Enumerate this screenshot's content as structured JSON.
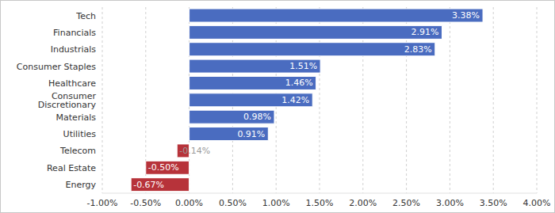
{
  "chart_data": {
    "type": "bar",
    "orientation": "horizontal",
    "categories": [
      "Tech",
      "Financials",
      "Industrials",
      "Consumer Staples",
      "Healthcare",
      "Consumer Discretionary",
      "Materials",
      "Utilities",
      "Telecom",
      "Real Estate",
      "Energy"
    ],
    "values": [
      3.38,
      2.91,
      2.83,
      1.51,
      1.46,
      1.42,
      0.98,
      0.91,
      -0.14,
      -0.5,
      -0.67
    ],
    "value_labels": [
      "3.38%",
      "2.91%",
      "2.83%",
      "1.51%",
      "1.46%",
      "1.42%",
      "0.98%",
      "0.91%",
      "-0.14%",
      "-0.50%",
      "-0.67%"
    ],
    "data_labels": true,
    "colors": [
      "#4a6cc0",
      "#4a6cc0",
      "#4a6cc0",
      "#4a6cc0",
      "#4a6cc0",
      "#4a6cc0",
      "#4a6cc0",
      "#4a6cc0",
      "#b7333a",
      "#b7333a",
      "#b7333a"
    ],
    "xlim": [
      -1,
      4
    ],
    "xticks": [
      {
        "value": -1,
        "label": "-1.00%"
      },
      {
        "value": -0.5,
        "label": "-0.50%"
      },
      {
        "value": 0,
        "label": "0.00%"
      },
      {
        "value": 0.5,
        "label": "0.50%"
      },
      {
        "value": 1,
        "label": "1.00%"
      },
      {
        "value": 1.5,
        "label": "1.50%"
      },
      {
        "value": 2,
        "label": "2.00%"
      },
      {
        "value": 2.5,
        "label": "2.50%"
      },
      {
        "value": 3,
        "label": "3.00%"
      },
      {
        "value": 3.5,
        "label": "3.50%"
      },
      {
        "value": 4,
        "label": "4.00%"
      }
    ],
    "grid": true
  }
}
